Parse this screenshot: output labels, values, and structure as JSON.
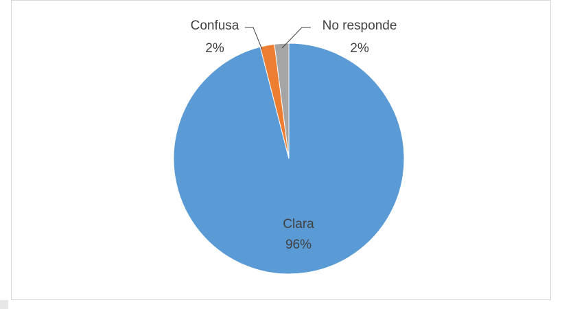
{
  "chart_data": {
    "type": "pie",
    "categories": [
      "Clara",
      "Confusa",
      "No responde"
    ],
    "values": [
      96,
      2,
      2
    ],
    "value_labels": [
      "96%",
      "2%",
      "2%"
    ],
    "colors": [
      "#5b9bd5",
      "#ed7d31",
      "#a5a5a5"
    ]
  }
}
